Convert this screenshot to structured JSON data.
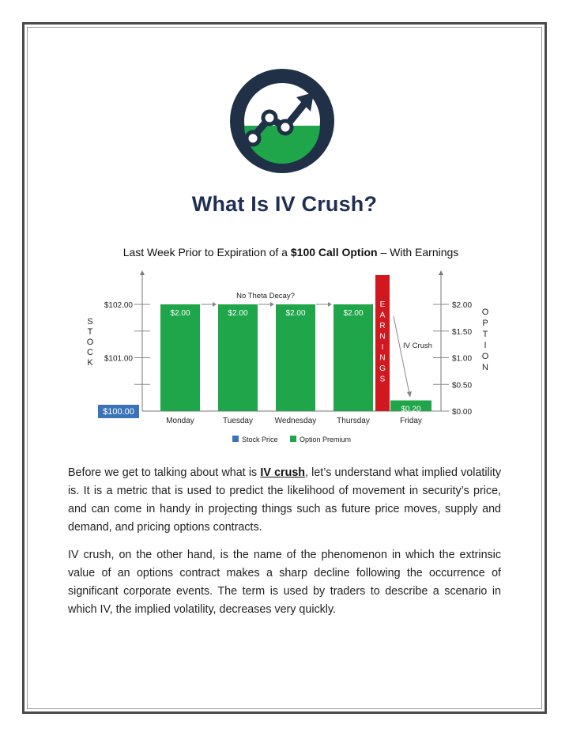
{
  "document": {
    "title": "What Is IV Crush?",
    "paragraphs": [
      {
        "before": "Before we get to talking about what is ",
        "link": "IV crush",
        "after": ", let’s understand what implied volatility is. It is a metric that is used to predict the likelihood of movement in security’s price, and can come in handy in projecting things such as future price moves, supply and demand, and pricing options contracts."
      },
      {
        "text": "IV crush, on the other hand, is the name of the phenomenon in which the extrinsic value of an options contract makes a sharp decline following the occurrence of significant corporate events. The term is used by traders to describe a scenario in which IV, the implied volatility, decreases very quickly."
      }
    ]
  },
  "colors": {
    "navy": "#1f3047",
    "green": "#1fa64a",
    "blue": "#3b73b9",
    "red": "#d0181e"
  },
  "logo": {
    "icon": "chart-trend-up-logo-icon"
  },
  "chart_data": {
    "type": "bar",
    "title_prefix": "Last Week Prior to Expiration of a ",
    "title_bold": "$100 Call Option",
    "title_suffix": " – With Earnings",
    "categories": [
      "Monday",
      "Tuesday",
      "Wednesday",
      "Thursday",
      "Friday"
    ],
    "series": [
      {
        "name": "Stock Price",
        "values": [
          100.0,
          null,
          null,
          null,
          null
        ],
        "labels": [
          "$100.00",
          "",
          "",
          "",
          ""
        ]
      },
      {
        "name": "Option Premium",
        "values": [
          2.0,
          2.0,
          2.0,
          2.0,
          0.2
        ],
        "labels": [
          "$2.00",
          "$2.00",
          "$2.00",
          "$2.00",
          "$0.20"
        ]
      }
    ],
    "left_axis": {
      "label": "STOCK",
      "ticks": [
        "$102.00",
        "$101.00"
      ],
      "tick_values": [
        102,
        101
      ],
      "range": [
        100,
        102.5
      ]
    },
    "right_axis": {
      "label": "OPTION",
      "ticks": [
        "$2.00",
        "$1.50",
        "$1.00",
        "$0.50",
        "$0.00"
      ],
      "tick_values": [
        2.0,
        1.5,
        1.0,
        0.5,
        0.0
      ],
      "range": [
        0,
        2.5
      ]
    },
    "earnings_label": "EARNINGS",
    "annotations": {
      "theta": "No Theta Decay?",
      "crush": "IV Crush"
    },
    "legend_position": "bottom"
  }
}
